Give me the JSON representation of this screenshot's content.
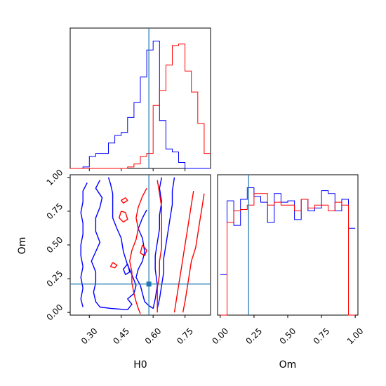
{
  "chart_data": {
    "type": "corner",
    "parameters": [
      "H0",
      "Om"
    ],
    "truth": {
      "H0": 0.58,
      "Om": 0.21
    },
    "colors": {
      "blue": "#0000ff",
      "red": "#ff0000",
      "truth": "#1f77b4"
    },
    "xlabels": {
      "H0": "H0",
      "Om": "Om"
    },
    "ylabels": {
      "Om": "Om"
    },
    "ticks": {
      "H0": {
        "values": [
          0.3,
          0.45,
          0.6,
          0.75
        ],
        "labels": [
          "0.30",
          "0.45",
          "0.60",
          "0.75"
        ]
      },
      "Om": {
        "values": [
          0.0,
          0.25,
          0.5,
          0.75,
          1.0
        ],
        "labels": [
          "0.00",
          "0.25",
          "0.50",
          "0.75",
          "1.00"
        ]
      }
    },
    "ranges": {
      "H0": [
        0.21,
        0.87
      ],
      "Om": [
        -0.02,
        1.02
      ]
    },
    "hist_H0": {
      "edges": [
        0.21,
        0.24,
        0.27,
        0.3,
        0.33,
        0.36,
        0.39,
        0.42,
        0.45,
        0.48,
        0.51,
        0.54,
        0.57,
        0.6,
        0.63,
        0.66,
        0.69,
        0.72,
        0.75,
        0.78,
        0.81,
        0.84,
        0.87
      ],
      "series": [
        {
          "color": "blue",
          "values": [
            0,
            0,
            1,
            8,
            10,
            10,
            17,
            22,
            24,
            34,
            44,
            61,
            79,
            85,
            32,
            13,
            11,
            4,
            0,
            0,
            0,
            0
          ]
        },
        {
          "color": "red",
          "values": [
            0,
            0,
            0,
            0,
            0,
            0,
            0,
            0,
            0,
            1,
            3,
            8,
            10,
            42,
            52,
            69,
            82,
            83,
            65,
            51,
            30,
            10
          ]
        }
      ]
    },
    "hist_Om": {
      "edges": [
        0.0,
        0.05,
        0.1,
        0.15,
        0.2,
        0.25,
        0.3,
        0.35,
        0.4,
        0.45,
        0.5,
        0.55,
        0.6,
        0.65,
        0.7,
        0.75,
        0.8,
        0.85,
        0.9,
        0.95,
        1.0
      ],
      "series": [
        {
          "color": "blue",
          "values": [
            28,
            79,
            62,
            80,
            88,
            82,
            78,
            64,
            84,
            78,
            79,
            66,
            80,
            72,
            74,
            86,
            84,
            72,
            80,
            60
          ]
        },
        {
          "color": "red",
          "values": [
            0,
            64,
            72,
            73,
            76,
            84,
            84,
            76,
            78,
            76,
            76,
            72,
            80,
            74,
            76,
            76,
            72,
            78,
            76,
            0
          ]
        }
      ]
    },
    "contours": [
      {
        "color": "blue",
        "paths": [
          [
            [
              0.35,
              0.98
            ],
            [
              0.33,
              0.92
            ],
            [
              0.36,
              0.85
            ],
            [
              0.35,
              0.78
            ],
            [
              0.33,
              0.7
            ],
            [
              0.33,
              0.6
            ],
            [
              0.35,
              0.52
            ],
            [
              0.33,
              0.45
            ],
            [
              0.31,
              0.38
            ],
            [
              0.33,
              0.3
            ],
            [
              0.33,
              0.22
            ],
            [
              0.32,
              0.15
            ],
            [
              0.33,
              0.08
            ],
            [
              0.35,
              0.04
            ],
            [
              0.4,
              0.03
            ],
            [
              0.48,
              0.02
            ],
            [
              0.5,
              0.06
            ],
            [
              0.48,
              0.1
            ],
            [
              0.51,
              0.14
            ],
            [
              0.52,
              0.2
            ],
            [
              0.5,
              0.28
            ],
            [
              0.48,
              0.35
            ],
            [
              0.46,
              0.45
            ],
            [
              0.45,
              0.55
            ],
            [
              0.43,
              0.62
            ],
            [
              0.41,
              0.7
            ],
            [
              0.41,
              0.8
            ],
            [
              0.41,
              0.88
            ],
            [
              0.4,
              0.95
            ],
            [
              0.39,
              1.0
            ]
          ],
          [
            [
              0.29,
              0.96
            ],
            [
              0.27,
              0.9
            ],
            [
              0.27,
              0.82
            ],
            [
              0.26,
              0.74
            ],
            [
              0.27,
              0.66
            ],
            [
              0.27,
              0.58
            ],
            [
              0.26,
              0.5
            ],
            [
              0.26,
              0.42
            ],
            [
              0.27,
              0.34
            ],
            [
              0.26,
              0.26
            ],
            [
              0.27,
              0.18
            ],
            [
              0.26,
              0.1
            ],
            [
              0.27,
              0.04
            ]
          ],
          [
            [
              0.57,
              0.76
            ],
            [
              0.55,
              0.7
            ],
            [
              0.53,
              0.62
            ],
            [
              0.55,
              0.55
            ],
            [
              0.56,
              0.45
            ],
            [
              0.55,
              0.38
            ],
            [
              0.53,
              0.32
            ],
            [
              0.52,
              0.26
            ],
            [
              0.54,
              0.2
            ],
            [
              0.55,
              0.14
            ],
            [
              0.56,
              0.08
            ],
            [
              0.58,
              0.05
            ],
            [
              0.6,
              0.03
            ],
            [
              0.61,
              0.1
            ],
            [
              0.62,
              0.2
            ],
            [
              0.61,
              0.32
            ],
            [
              0.61,
              0.42
            ],
            [
              0.62,
              0.52
            ],
            [
              0.63,
              0.62
            ],
            [
              0.63,
              0.72
            ],
            [
              0.64,
              0.82
            ],
            [
              0.63,
              0.92
            ],
            [
              0.64,
              1.0
            ]
          ],
          [
            [
              0.7,
              1.0
            ],
            [
              0.69,
              0.9
            ],
            [
              0.69,
              0.8
            ],
            [
              0.68,
              0.7
            ],
            [
              0.67,
              0.6
            ],
            [
              0.66,
              0.5
            ],
            [
              0.65,
              0.4
            ],
            [
              0.65,
              0.3
            ],
            [
              0.64,
              0.2
            ],
            [
              0.63,
              0.1
            ],
            [
              0.62,
              0.03
            ]
          ],
          [
            [
              0.48,
              0.36
            ],
            [
              0.46,
              0.32
            ],
            [
              0.47,
              0.28
            ],
            [
              0.49,
              0.3
            ],
            [
              0.48,
              0.36
            ]
          ]
        ]
      },
      {
        "color": "red",
        "paths": [
          [
            [
              0.57,
              0.92
            ],
            [
              0.55,
              0.86
            ],
            [
              0.53,
              0.78
            ],
            [
              0.52,
              0.7
            ],
            [
              0.53,
              0.62
            ],
            [
              0.52,
              0.54
            ],
            [
              0.5,
              0.46
            ],
            [
              0.49,
              0.38
            ],
            [
              0.5,
              0.3
            ],
            [
              0.5,
              0.22
            ],
            [
              0.51,
              0.14
            ],
            [
              0.52,
              0.08
            ],
            [
              0.53,
              0.03
            ],
            [
              0.54,
              -0.01
            ]
          ],
          [
            [
              0.62,
              0.98
            ],
            [
              0.63,
              0.88
            ],
            [
              0.64,
              0.78
            ],
            [
              0.64,
              0.68
            ],
            [
              0.64,
              0.58
            ],
            [
              0.64,
              0.48
            ],
            [
              0.63,
              0.38
            ],
            [
              0.63,
              0.28
            ],
            [
              0.62,
              0.18
            ],
            [
              0.62,
              0.08
            ],
            [
              0.62,
              0.0
            ]
          ],
          [
            [
              0.79,
              0.9
            ],
            [
              0.78,
              0.8
            ],
            [
              0.77,
              0.7
            ],
            [
              0.76,
              0.6
            ],
            [
              0.75,
              0.5
            ],
            [
              0.74,
              0.4
            ],
            [
              0.73,
              0.3
            ],
            [
              0.72,
              0.2
            ],
            [
              0.71,
              0.1
            ],
            [
              0.7,
              0.0
            ]
          ],
          [
            [
              0.84,
              0.88
            ],
            [
              0.83,
              0.78
            ],
            [
              0.82,
              0.68
            ],
            [
              0.81,
              0.58
            ],
            [
              0.8,
              0.48
            ],
            [
              0.78,
              0.38
            ],
            [
              0.77,
              0.28
            ],
            [
              0.76,
              0.18
            ],
            [
              0.75,
              0.08
            ],
            [
              0.74,
              0.0
            ]
          ],
          [
            [
              0.47,
              0.85
            ],
            [
              0.45,
              0.83
            ],
            [
              0.46,
              0.81
            ],
            [
              0.48,
              0.83
            ],
            [
              0.47,
              0.85
            ]
          ],
          [
            [
              0.45,
              0.75
            ],
            [
              0.44,
              0.7
            ],
            [
              0.46,
              0.67
            ],
            [
              0.48,
              0.69
            ],
            [
              0.47,
              0.74
            ],
            [
              0.45,
              0.75
            ]
          ],
          [
            [
              0.41,
              0.37
            ],
            [
              0.4,
              0.34
            ],
            [
              0.42,
              0.33
            ],
            [
              0.43,
              0.35
            ],
            [
              0.41,
              0.37
            ]
          ],
          [
            [
              0.55,
              0.5
            ],
            [
              0.54,
              0.44
            ],
            [
              0.56,
              0.42
            ],
            [
              0.57,
              0.46
            ],
            [
              0.55,
              0.5
            ]
          ]
        ]
      }
    ]
  }
}
